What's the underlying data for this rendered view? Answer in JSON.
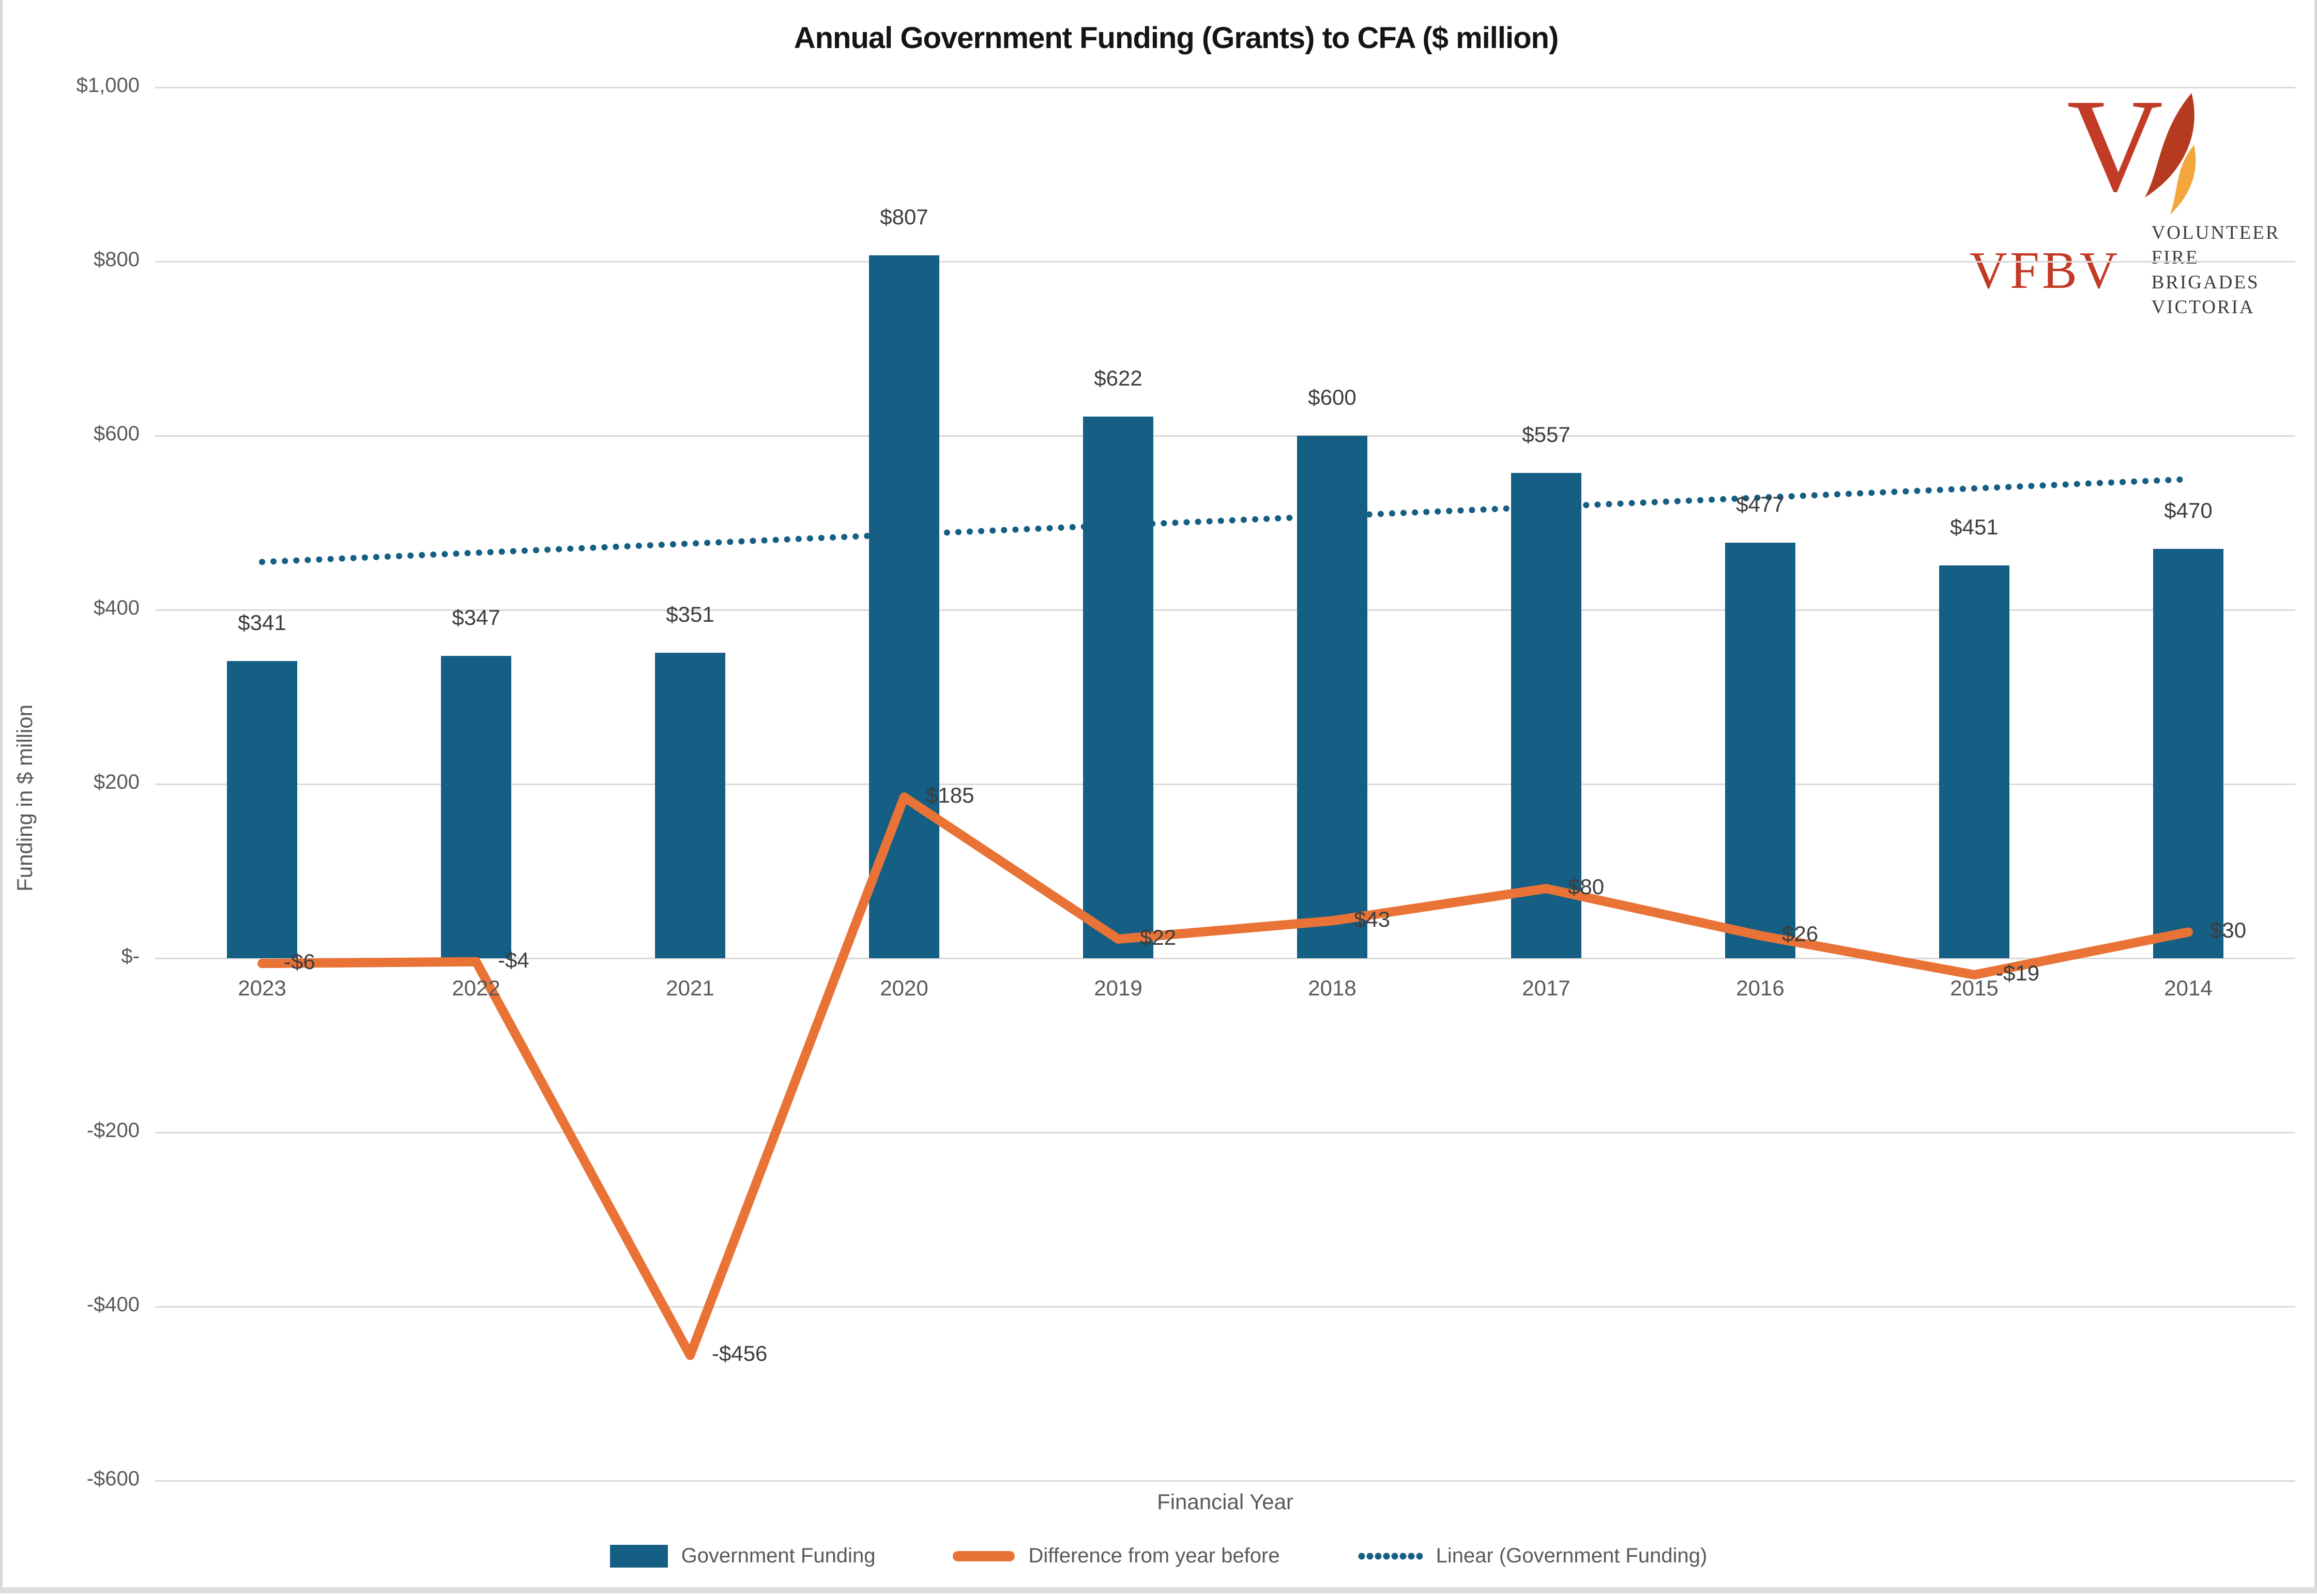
{
  "window": {
    "border_color": "#d7d7d7",
    "background": "#ffffff"
  },
  "chart_data": {
    "type": "bar",
    "title": "Annual Government Funding (Grants) to CFA ($ million)",
    "xlabel": "Financial Year",
    "ylabel": "Funding in $ million",
    "categories": [
      "2023",
      "2022",
      "2021",
      "2020",
      "2019",
      "2018",
      "2017",
      "2016",
      "2015",
      "2014"
    ],
    "series": [
      {
        "name": "Government Funding",
        "type": "bar",
        "color": "#155E84",
        "values": [
          341,
          347,
          351,
          807,
          622,
          600,
          557,
          477,
          451,
          470
        ],
        "labels": [
          "$341",
          "$347",
          "$351",
          "$807",
          "$622",
          "$600",
          "$557",
          "$477",
          "$451",
          "$470"
        ]
      },
      {
        "name": "Difference from year before",
        "type": "line",
        "color": "#E97336",
        "values": [
          -6,
          -4,
          -456,
          185,
          22,
          43,
          80,
          26,
          -19,
          30
        ],
        "labels": [
          "-$6",
          "-$4",
          "-$456",
          "$185",
          "$22",
          "$43",
          "$80",
          "$26",
          "-$19",
          "$30"
        ]
      },
      {
        "name": "Linear (Government Funding)",
        "type": "trendline",
        "style": "dotted",
        "color": "#155E84",
        "endpoint_values": [
          455,
          550
        ]
      }
    ],
    "yticks": [
      {
        "label": "$1,000",
        "value": 1000
      },
      {
        "label": "$800",
        "value": 800
      },
      {
        "label": "$600",
        "value": 600
      },
      {
        "label": "$400",
        "value": 400
      },
      {
        "label": "$200",
        "value": 200
      },
      {
        "label": "$-",
        "value": 0
      },
      {
        "label": "-$200",
        "value": -200
      },
      {
        "label": "-$400",
        "value": -400
      },
      {
        "label": "-$600",
        "value": -600
      }
    ],
    "ylim": [
      -600,
      1000
    ],
    "grid": true,
    "gridline_color": "#D9D9D9",
    "tick_text_color": "#595959",
    "label_text_color": "#3d3d3d",
    "legend_position": "bottom"
  },
  "legend": {
    "item1": "Government Funding",
    "item2": "Difference from year before",
    "item3": "Linear (Government Funding)"
  },
  "logo": {
    "acronym": "VFBV",
    "org_line1": "VOLUNTEER FIRE",
    "org_line2": "BRIGADES VICTORIA",
    "colors": {
      "red": "#C23B26",
      "flame_dark": "#B63A20",
      "flame_amber": "#F2A63B",
      "org_text": "#3C3C3C",
      "divider": "#EBC9B8"
    }
  }
}
